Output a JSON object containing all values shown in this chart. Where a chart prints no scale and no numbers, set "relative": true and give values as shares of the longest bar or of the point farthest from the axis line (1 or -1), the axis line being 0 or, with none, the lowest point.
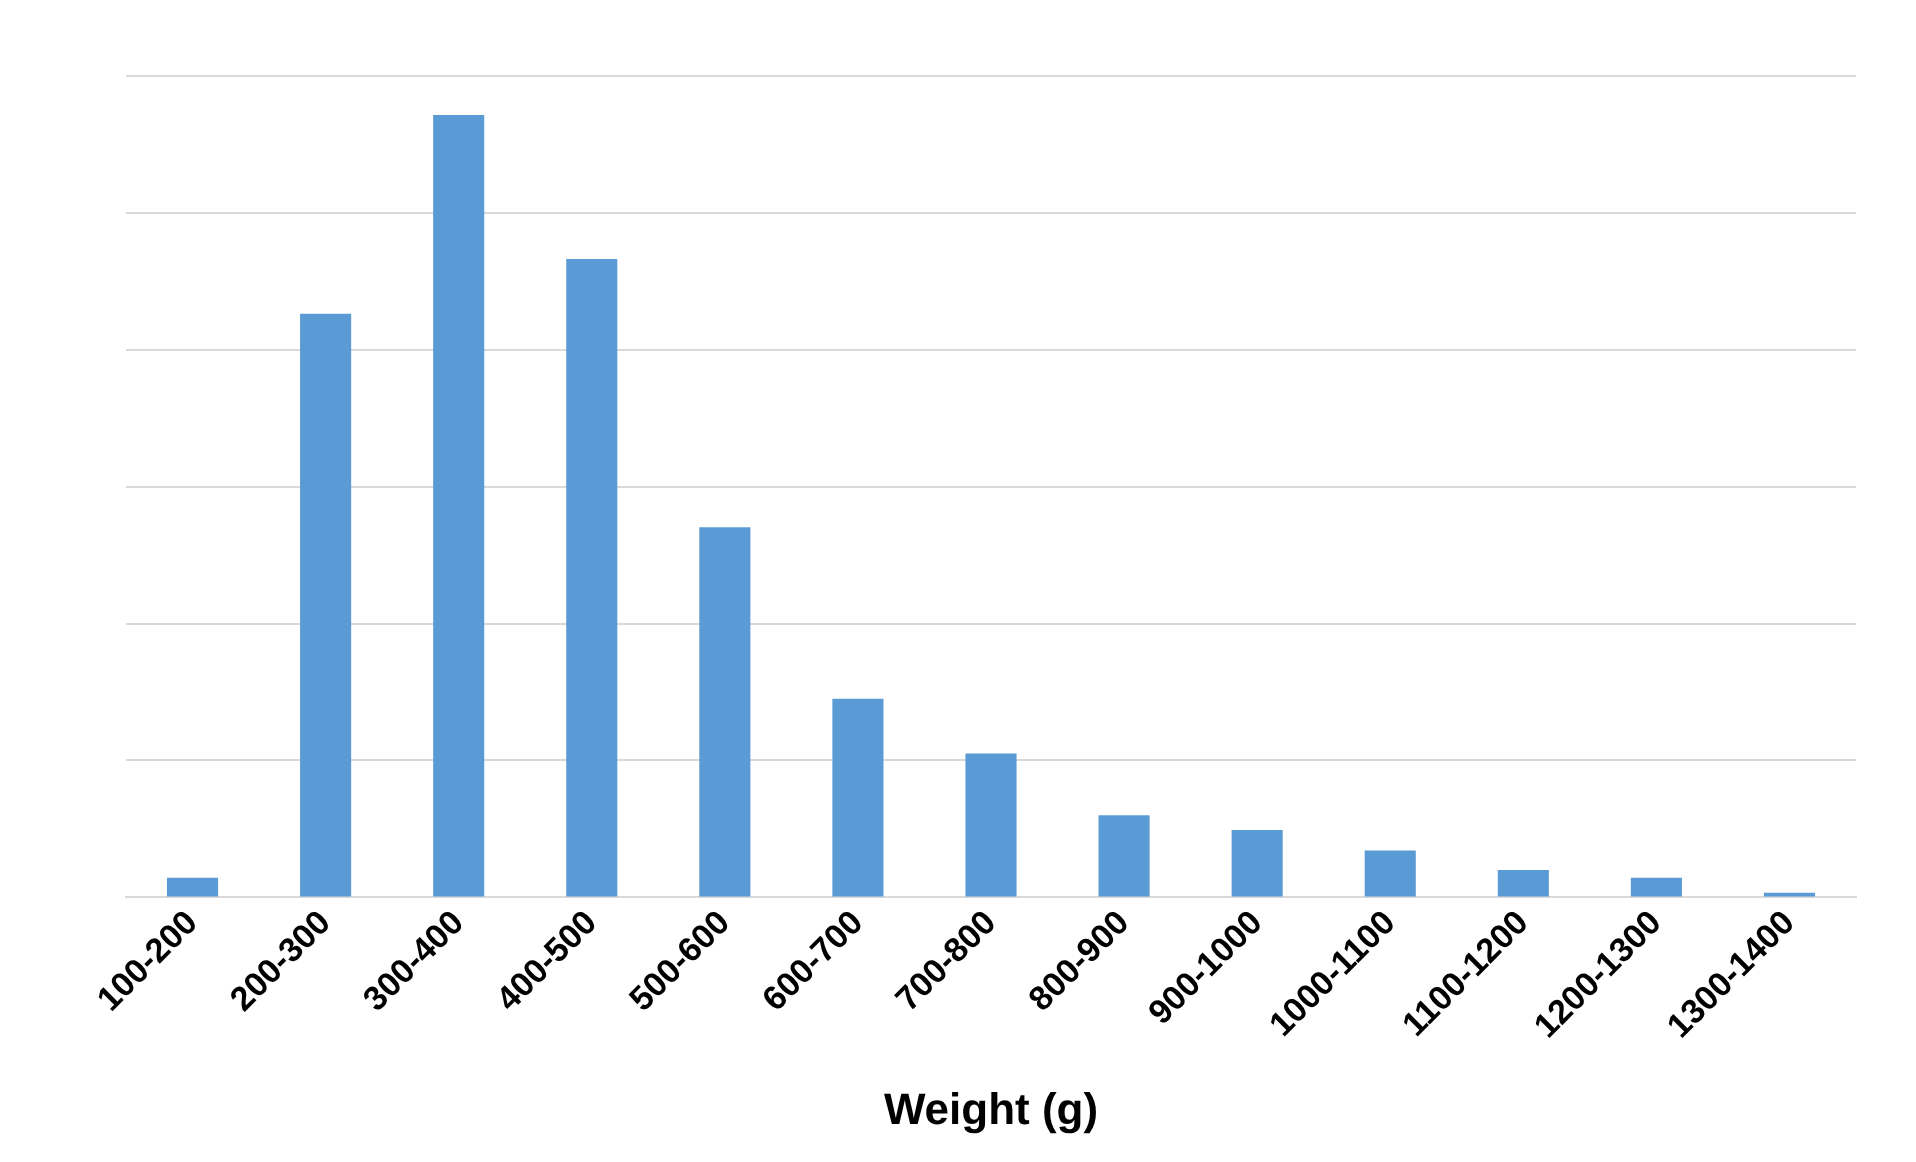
{
  "chart_data": {
    "type": "bar",
    "relative": true,
    "xlabel": "Weight (g)",
    "color": "#5b9bd5",
    "grid": "y",
    "legend": false,
    "categories": [
      "100-200",
      "200-300",
      "300-400",
      "400-500",
      "500-600",
      "600-700",
      "700-800",
      "800-900",
      "900-1000",
      "1000-1100",
      "1100-1200",
      "1200-1300",
      "1300-1400"
    ],
    "values": [
      0.025,
      0.746,
      1,
      0.816,
      0.473,
      0.254,
      0.184,
      0.105,
      0.086,
      0.06,
      0.035,
      0.025,
      0.006
    ]
  }
}
